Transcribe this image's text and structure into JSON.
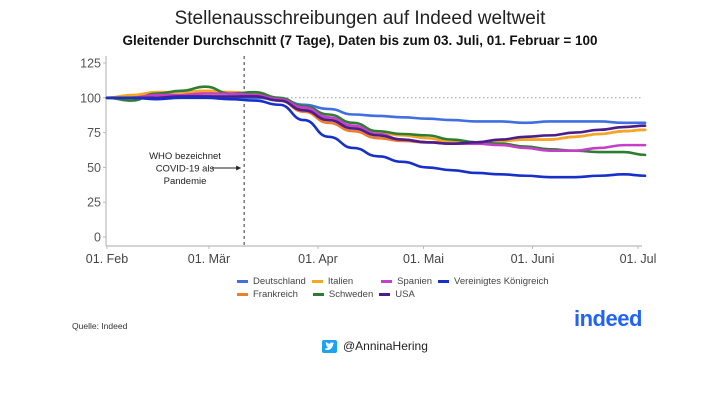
{
  "header": {
    "title": "Stellenausschreibungen auf Indeed weltweit",
    "subtitle": "Gleitender Durchschnitt (7 Tage), Daten bis zum 03. Juli, 01. Februar = 100"
  },
  "footer": {
    "source": "Quelle: Indeed",
    "logo": "indeed",
    "twitter_handle": "@AnninaHering",
    "twitter_icon": "twitter-bird-icon"
  },
  "chart_data": {
    "type": "line",
    "title": "Stellenausschreibungen auf Indeed weltweit",
    "subtitle": "Gleitender Durchschnitt (7 Tage), Daten bis zum 03. Juli, 01. Februar = 100",
    "xlabel": "",
    "ylabel": "",
    "x_unit": "days since 01. Feb 2020",
    "xlim": [
      0,
      153
    ],
    "ylim": [
      0,
      130
    ],
    "x_ticks": [
      {
        "day": 0,
        "label": "01. Feb"
      },
      {
        "day": 29,
        "label": "01. Mär"
      },
      {
        "day": 60,
        "label": "01. Apr"
      },
      {
        "day": 90,
        "label": "01. Mai"
      },
      {
        "day": 121,
        "label": "01. Juni"
      },
      {
        "day": 151,
        "label": "01. Jul"
      }
    ],
    "y_ticks": [
      0,
      25,
      50,
      75,
      100,
      125
    ],
    "reference_line": {
      "y": 100,
      "style": "dotted"
    },
    "annotation": {
      "day": 39,
      "text_lines": [
        "WHO bezeichnet",
        "COVID-19 als",
        "Pandemie"
      ],
      "style": "dashed vertical line with arrow"
    },
    "grid": false,
    "legend_position": "bottom",
    "x": [
      0,
      7,
      14,
      21,
      28,
      35,
      42,
      49,
      56,
      63,
      70,
      77,
      84,
      91,
      98,
      105,
      112,
      119,
      126,
      133,
      140,
      147,
      153
    ],
    "series": [
      {
        "name": "Deutschland",
        "color": "#3f6fe0",
        "values": [
          100,
          100,
          100,
          101,
          101,
          100,
          100,
          99,
          95,
          92,
          88,
          87,
          86,
          85,
          84,
          83,
          83,
          82,
          83,
          83,
          83,
          82,
          82
        ]
      },
      {
        "name": "Frankreich",
        "color": "#f07d2c",
        "values": [
          100,
          101,
          103,
          104,
          104,
          104,
          103,
          98,
          90,
          82,
          76,
          71,
          69,
          68,
          68,
          68,
          69,
          70,
          70,
          72,
          74,
          76,
          77
        ]
      },
      {
        "name": "Italien",
        "color": "#f5a623",
        "values": [
          100,
          102,
          104,
          104,
          105,
          104,
          103,
          99,
          92,
          85,
          79,
          75,
          73,
          71,
          68,
          68,
          69,
          70,
          70,
          72,
          74,
          76,
          77
        ]
      },
      {
        "name": "Schweden",
        "color": "#2e7d32",
        "values": [
          100,
          98,
          103,
          105,
          108,
          103,
          104,
          100,
          94,
          88,
          82,
          76,
          74,
          73,
          70,
          68,
          67,
          65,
          63,
          62,
          61,
          61,
          59
        ]
      },
      {
        "name": "Spanien",
        "color": "#c540c8",
        "values": [
          100,
          100,
          102,
          102,
          103,
          103,
          102,
          99,
          93,
          86,
          80,
          74,
          70,
          68,
          67,
          67,
          66,
          64,
          62,
          62,
          64,
          66,
          66
        ]
      },
      {
        "name": "USA",
        "color": "#4b1e8c",
        "values": [
          100,
          100,
          100,
          101,
          101,
          101,
          101,
          98,
          91,
          84,
          78,
          73,
          70,
          68,
          67,
          68,
          70,
          72,
          73,
          75,
          77,
          79,
          80
        ]
      },
      {
        "name": "Vereinigtes Königreich",
        "color": "#1730c8",
        "values": [
          100,
          100,
          99,
          100,
          100,
          99,
          98,
          95,
          84,
          72,
          64,
          58,
          54,
          50,
          48,
          46,
          45,
          44,
          43,
          43,
          44,
          45,
          44
        ]
      }
    ]
  },
  "legend": {
    "rows": [
      [
        {
          "name": "Deutschland",
          "color": "#3f6fe0"
        },
        {
          "name": "Italien",
          "color": "#f5a623"
        },
        {
          "name": "Spanien",
          "color": "#c540c8"
        },
        {
          "name": "Vereinigtes Königreich",
          "color": "#1730c8"
        }
      ],
      [
        {
          "name": "Frankreich",
          "color": "#f07d2c"
        },
        {
          "name": "Schweden",
          "color": "#2e7d32"
        },
        {
          "name": "USA",
          "color": "#4b1e8c"
        }
      ]
    ]
  }
}
